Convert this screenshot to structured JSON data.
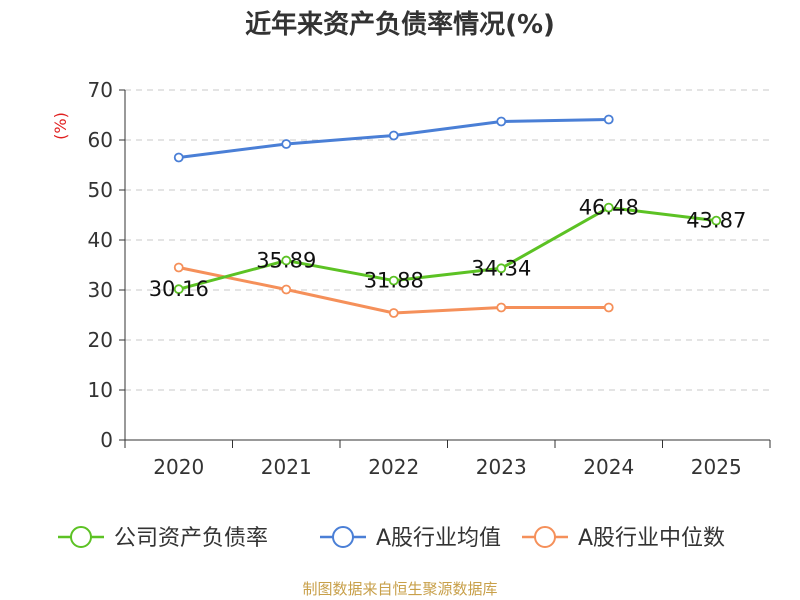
{
  "chart_data": {
    "type": "line",
    "title": "近年来资产负债率情况(%)",
    "ylabel": "(%)",
    "xlabel": "",
    "categories": [
      "2020",
      "2021",
      "2022",
      "2023",
      "2024",
      "2025"
    ],
    "ylim": [
      0,
      70
    ],
    "yticks": [
      0,
      10,
      20,
      30,
      40,
      50,
      60,
      70
    ],
    "grid": true,
    "legend_position": "bottom",
    "series": [
      {
        "name": "公司资产负债率",
        "color": "#5cc224",
        "values": [
          30.16,
          35.89,
          31.88,
          34.34,
          46.48,
          43.87
        ],
        "labels": [
          "30.16",
          "35.89",
          "31.88",
          "34.34",
          "46.48",
          "43.87"
        ]
      },
      {
        "name": "A股行业均值",
        "color": "#4a7fd6",
        "values": [
          56.5,
          59.2,
          60.9,
          63.7,
          64.1,
          null
        ]
      },
      {
        "name": "A股行业中位数",
        "color": "#f5905a",
        "values": [
          34.5,
          30.1,
          25.4,
          26.5,
          26.5,
          null
        ]
      }
    ],
    "source": "制图数据来自恒生聚源数据库"
  }
}
